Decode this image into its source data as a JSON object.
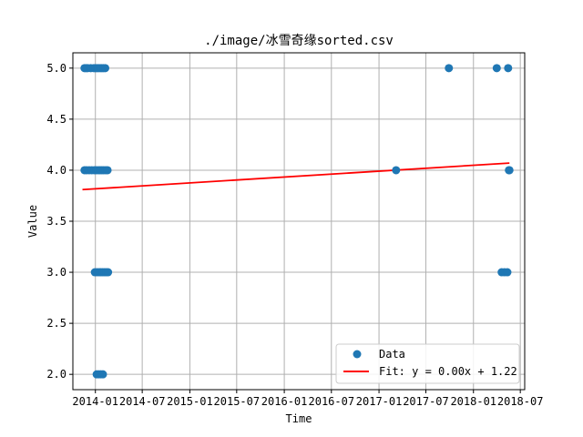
{
  "chart_data": {
    "type": "scatter",
    "title": "./image/冰雪奇缘sorted.csv",
    "xlabel": "Time",
    "ylabel": "Value",
    "x_axis_type": "date",
    "xlim": [
      "2013-10-06",
      "2018-07-18"
    ],
    "ylim": [
      1.85,
      5.15
    ],
    "x_ticks": [
      "2014-01-01",
      "2014-07-01",
      "2015-01-01",
      "2015-07-01",
      "2016-01-01",
      "2016-07-01",
      "2017-01-01",
      "2017-07-01",
      "2018-01-01",
      "2018-07-01"
    ],
    "x_tick_labels": [
      "2014-01",
      "2014-07",
      "2015-01",
      "2015-07",
      "2016-01",
      "2016-07",
      "2017-01",
      "2017-07",
      "2018-01",
      "2018-07"
    ],
    "y_ticks": [
      2.0,
      2.5,
      3.0,
      3.5,
      4.0,
      4.5,
      5.0
    ],
    "y_tick_labels": [
      "2.0",
      "2.5",
      "3.0",
      "3.5",
      "4.0",
      "4.5",
      "5.0"
    ],
    "grid": true,
    "legend_position": "lower-right",
    "colors": {
      "data": "#1f77b4",
      "fit": "#ff0000",
      "grid": "#b0b0b0"
    },
    "series": [
      {
        "name": "Data",
        "kind": "scatter",
        "points": [
          {
            "x": "2013-11-20",
            "y": 5
          },
          {
            "x": "2013-11-26",
            "y": 5
          },
          {
            "x": "2013-12-02",
            "y": 5
          },
          {
            "x": "2013-12-14",
            "y": 5
          },
          {
            "x": "2013-12-26",
            "y": 5
          },
          {
            "x": "2014-01-01",
            "y": 5
          },
          {
            "x": "2014-01-07",
            "y": 5
          },
          {
            "x": "2014-01-13",
            "y": 5
          },
          {
            "x": "2014-01-20",
            "y": 5
          },
          {
            "x": "2014-01-26",
            "y": 5
          },
          {
            "x": "2014-02-01",
            "y": 5
          },
          {
            "x": "2014-02-08",
            "y": 5
          },
          {
            "x": "2017-09-28",
            "y": 5
          },
          {
            "x": "2018-04-01",
            "y": 5
          },
          {
            "x": "2018-05-15",
            "y": 5
          },
          {
            "x": "2013-11-20",
            "y": 4
          },
          {
            "x": "2013-11-28",
            "y": 4
          },
          {
            "x": "2013-12-08",
            "y": 4
          },
          {
            "x": "2013-12-18",
            "y": 4
          },
          {
            "x": "2013-12-28",
            "y": 4
          },
          {
            "x": "2014-01-04",
            "y": 4
          },
          {
            "x": "2014-01-12",
            "y": 4
          },
          {
            "x": "2014-01-19",
            "y": 4
          },
          {
            "x": "2014-01-26",
            "y": 4
          },
          {
            "x": "2014-02-02",
            "y": 4
          },
          {
            "x": "2014-02-10",
            "y": 4
          },
          {
            "x": "2014-02-17",
            "y": 4
          },
          {
            "x": "2017-03-08",
            "y": 4
          },
          {
            "x": "2018-05-18",
            "y": 4
          },
          {
            "x": "2018-05-20",
            "y": 4
          },
          {
            "x": "2013-12-30",
            "y": 3
          },
          {
            "x": "2014-01-08",
            "y": 3
          },
          {
            "x": "2014-01-16",
            "y": 3
          },
          {
            "x": "2014-01-22",
            "y": 3
          },
          {
            "x": "2014-01-29",
            "y": 3
          },
          {
            "x": "2014-02-05",
            "y": 3
          },
          {
            "x": "2014-02-12",
            "y": 3
          },
          {
            "x": "2014-02-19",
            "y": 3
          },
          {
            "x": "2018-04-20",
            "y": 3
          },
          {
            "x": "2018-05-01",
            "y": 3
          },
          {
            "x": "2018-05-12",
            "y": 3
          },
          {
            "x": "2014-01-06",
            "y": 2
          },
          {
            "x": "2014-01-14",
            "y": 2
          },
          {
            "x": "2014-01-22",
            "y": 2
          },
          {
            "x": "2014-01-30",
            "y": 2
          }
        ]
      },
      {
        "name": "Fit: y = 0.00x + 1.22",
        "kind": "line",
        "points": [
          {
            "x": "2013-11-12",
            "y": 3.81
          },
          {
            "x": "2018-05-20",
            "y": 4.07
          }
        ]
      }
    ]
  }
}
